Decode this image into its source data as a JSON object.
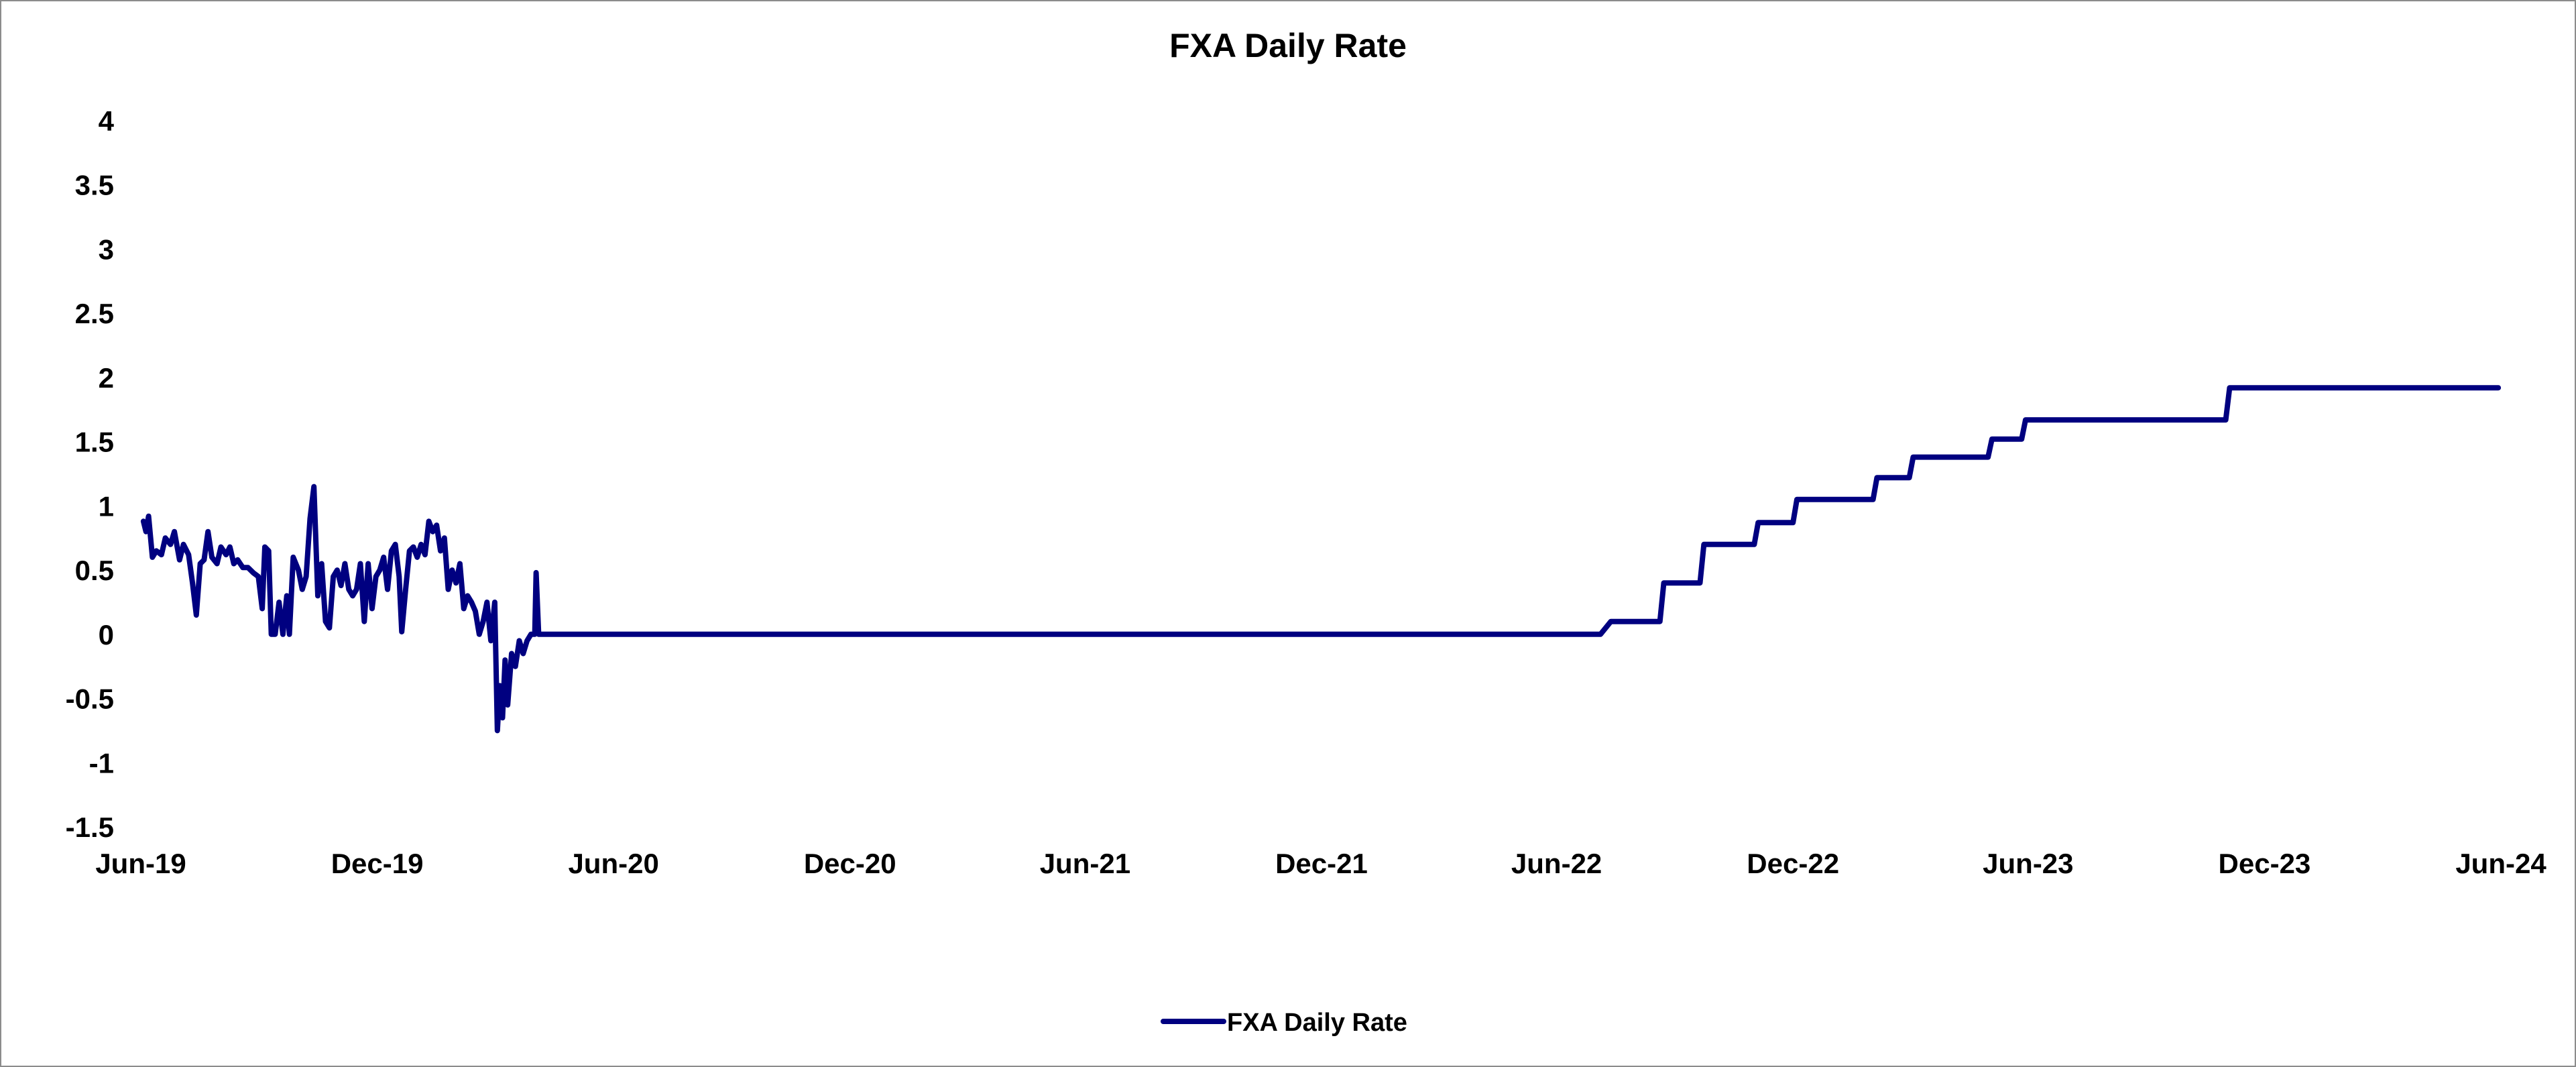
{
  "chart_data": {
    "type": "line",
    "title": "FXA Daily Rate",
    "xlabel": "",
    "ylabel": "",
    "x_tick_labels": [
      "Jun-19",
      "Dec-19",
      "Jun-20",
      "Dec-20",
      "Jun-21",
      "Dec-21",
      "Jun-22",
      "Dec-22",
      "Jun-23",
      "Dec-23",
      "Jun-24"
    ],
    "x_ticks": [
      "2019-06-01",
      "2019-12-01",
      "2020-06-01",
      "2020-12-01",
      "2021-06-01",
      "2021-12-01",
      "2022-06-01",
      "2022-12-01",
      "2023-06-01",
      "2023-12-01",
      "2024-06-01"
    ],
    "xlim": [
      "2019-06-01",
      "2024-06-01"
    ],
    "ylim": [
      -1.5,
      4
    ],
    "y_ticks": [
      -1.5,
      -1,
      -0.5,
      0,
      0.5,
      1,
      1.5,
      2,
      2.5,
      3,
      3.5,
      4
    ],
    "y_tick_labels": [
      "-1.5",
      "-1",
      "-0.5",
      "0",
      "0.5",
      "1",
      "1.5",
      "2",
      "2.5",
      "3",
      "3.5",
      "4"
    ],
    "grid": false,
    "legend_position": "bottom",
    "series": [
      {
        "name": "FXA Daily Rate",
        "color": "#000080",
        "points": [
          [
            "2019-06-03",
            0.88
          ],
          [
            "2019-06-05",
            0.8
          ],
          [
            "2019-06-07",
            0.92
          ],
          [
            "2019-06-10",
            0.6
          ],
          [
            "2019-06-13",
            0.65
          ],
          [
            "2019-06-17",
            0.62
          ],
          [
            "2019-06-20",
            0.75
          ],
          [
            "2019-06-24",
            0.7
          ],
          [
            "2019-06-27",
            0.8
          ],
          [
            "2019-07-01",
            0.58
          ],
          [
            "2019-07-04",
            0.7
          ],
          [
            "2019-07-08",
            0.62
          ],
          [
            "2019-07-11",
            0.4
          ],
          [
            "2019-07-14",
            0.15
          ],
          [
            "2019-07-17",
            0.55
          ],
          [
            "2019-07-20",
            0.58
          ],
          [
            "2019-07-23",
            0.8
          ],
          [
            "2019-07-26",
            0.6
          ],
          [
            "2019-07-30",
            0.55
          ],
          [
            "2019-08-02",
            0.68
          ],
          [
            "2019-08-06",
            0.62
          ],
          [
            "2019-08-09",
            0.68
          ],
          [
            "2019-08-12",
            0.55
          ],
          [
            "2019-08-15",
            0.58
          ],
          [
            "2019-08-19",
            0.52
          ],
          [
            "2019-08-23",
            0.52
          ],
          [
            "2019-08-27",
            0.48
          ],
          [
            "2019-08-31",
            0.45
          ],
          [
            "2019-09-03",
            0.2
          ],
          [
            "2019-09-05",
            0.68
          ],
          [
            "2019-09-08",
            0.65
          ],
          [
            "2019-09-10",
            0.0
          ],
          [
            "2019-09-13",
            0.0
          ],
          [
            "2019-09-16",
            0.25
          ],
          [
            "2019-09-19",
            0.0
          ],
          [
            "2019-09-22",
            0.3
          ],
          [
            "2019-09-24",
            0.0
          ],
          [
            "2019-09-27",
            0.6
          ],
          [
            "2019-10-01",
            0.5
          ],
          [
            "2019-10-04",
            0.35
          ],
          [
            "2019-10-07",
            0.45
          ],
          [
            "2019-10-10",
            0.9
          ],
          [
            "2019-10-13",
            1.15
          ],
          [
            "2019-10-16",
            0.3
          ],
          [
            "2019-10-19",
            0.55
          ],
          [
            "2019-10-22",
            0.1
          ],
          [
            "2019-10-25",
            0.05
          ],
          [
            "2019-10-28",
            0.45
          ],
          [
            "2019-10-31",
            0.5
          ],
          [
            "2019-11-03",
            0.38
          ],
          [
            "2019-11-06",
            0.55
          ],
          [
            "2019-11-09",
            0.35
          ],
          [
            "2019-11-12",
            0.3
          ],
          [
            "2019-11-15",
            0.35
          ],
          [
            "2019-11-18",
            0.55
          ],
          [
            "2019-11-21",
            0.1
          ],
          [
            "2019-11-24",
            0.55
          ],
          [
            "2019-11-27",
            0.2
          ],
          [
            "2019-11-30",
            0.45
          ],
          [
            "2019-12-03",
            0.5
          ],
          [
            "2019-12-06",
            0.6
          ],
          [
            "2019-12-09",
            0.35
          ],
          [
            "2019-12-12",
            0.65
          ],
          [
            "2019-12-15",
            0.7
          ],
          [
            "2019-12-18",
            0.45
          ],
          [
            "2019-12-20",
            0.02
          ],
          [
            "2019-12-23",
            0.35
          ],
          [
            "2019-12-26",
            0.65
          ],
          [
            "2019-12-29",
            0.68
          ],
          [
            "2020-01-01",
            0.6
          ],
          [
            "2020-01-04",
            0.7
          ],
          [
            "2020-01-07",
            0.62
          ],
          [
            "2020-01-10",
            0.88
          ],
          [
            "2020-01-13",
            0.8
          ],
          [
            "2020-01-16",
            0.85
          ],
          [
            "2020-01-19",
            0.65
          ],
          [
            "2020-01-22",
            0.75
          ],
          [
            "2020-01-25",
            0.35
          ],
          [
            "2020-01-28",
            0.5
          ],
          [
            "2020-01-31",
            0.4
          ],
          [
            "2020-02-03",
            0.55
          ],
          [
            "2020-02-06",
            0.2
          ],
          [
            "2020-02-09",
            0.3
          ],
          [
            "2020-02-12",
            0.25
          ],
          [
            "2020-02-15",
            0.18
          ],
          [
            "2020-02-18",
            0.0
          ],
          [
            "2020-02-21",
            0.1
          ],
          [
            "2020-02-24",
            0.25
          ],
          [
            "2020-02-27",
            -0.05
          ],
          [
            "2020-03-01",
            0.25
          ],
          [
            "2020-03-03",
            -0.75
          ],
          [
            "2020-03-05",
            -0.4
          ],
          [
            "2020-03-07",
            -0.65
          ],
          [
            "2020-03-09",
            -0.2
          ],
          [
            "2020-03-11",
            -0.55
          ],
          [
            "2020-03-14",
            -0.15
          ],
          [
            "2020-03-17",
            -0.25
          ],
          [
            "2020-03-20",
            -0.05
          ],
          [
            "2020-03-23",
            -0.15
          ],
          [
            "2020-03-26",
            -0.05
          ],
          [
            "2020-03-29",
            0.0
          ],
          [
            "2020-04-01",
            0.0
          ],
          [
            "2020-04-02",
            0.48
          ],
          [
            "2020-04-04",
            0.0
          ],
          [
            "2022-07-05",
            0.0
          ],
          [
            "2022-07-13",
            0.1
          ],
          [
            "2022-08-20",
            0.1
          ],
          [
            "2022-08-23",
            0.4
          ],
          [
            "2022-09-20",
            0.4
          ],
          [
            "2022-09-23",
            0.7
          ],
          [
            "2022-11-01",
            0.7
          ],
          [
            "2022-11-04",
            0.87
          ],
          [
            "2022-12-01",
            0.87
          ],
          [
            "2022-12-04",
            1.05
          ],
          [
            "2023-02-01",
            1.05
          ],
          [
            "2023-02-04",
            1.22
          ],
          [
            "2023-03-01",
            1.22
          ],
          [
            "2023-03-04",
            1.38
          ],
          [
            "2023-05-01",
            1.38
          ],
          [
            "2023-05-04",
            1.52
          ],
          [
            "2023-05-27",
            1.52
          ],
          [
            "2023-05-30",
            1.67
          ],
          [
            "2023-11-01",
            1.67
          ],
          [
            "2023-11-04",
            1.92
          ],
          [
            "2024-05-30",
            1.92
          ]
        ]
      }
    ]
  }
}
